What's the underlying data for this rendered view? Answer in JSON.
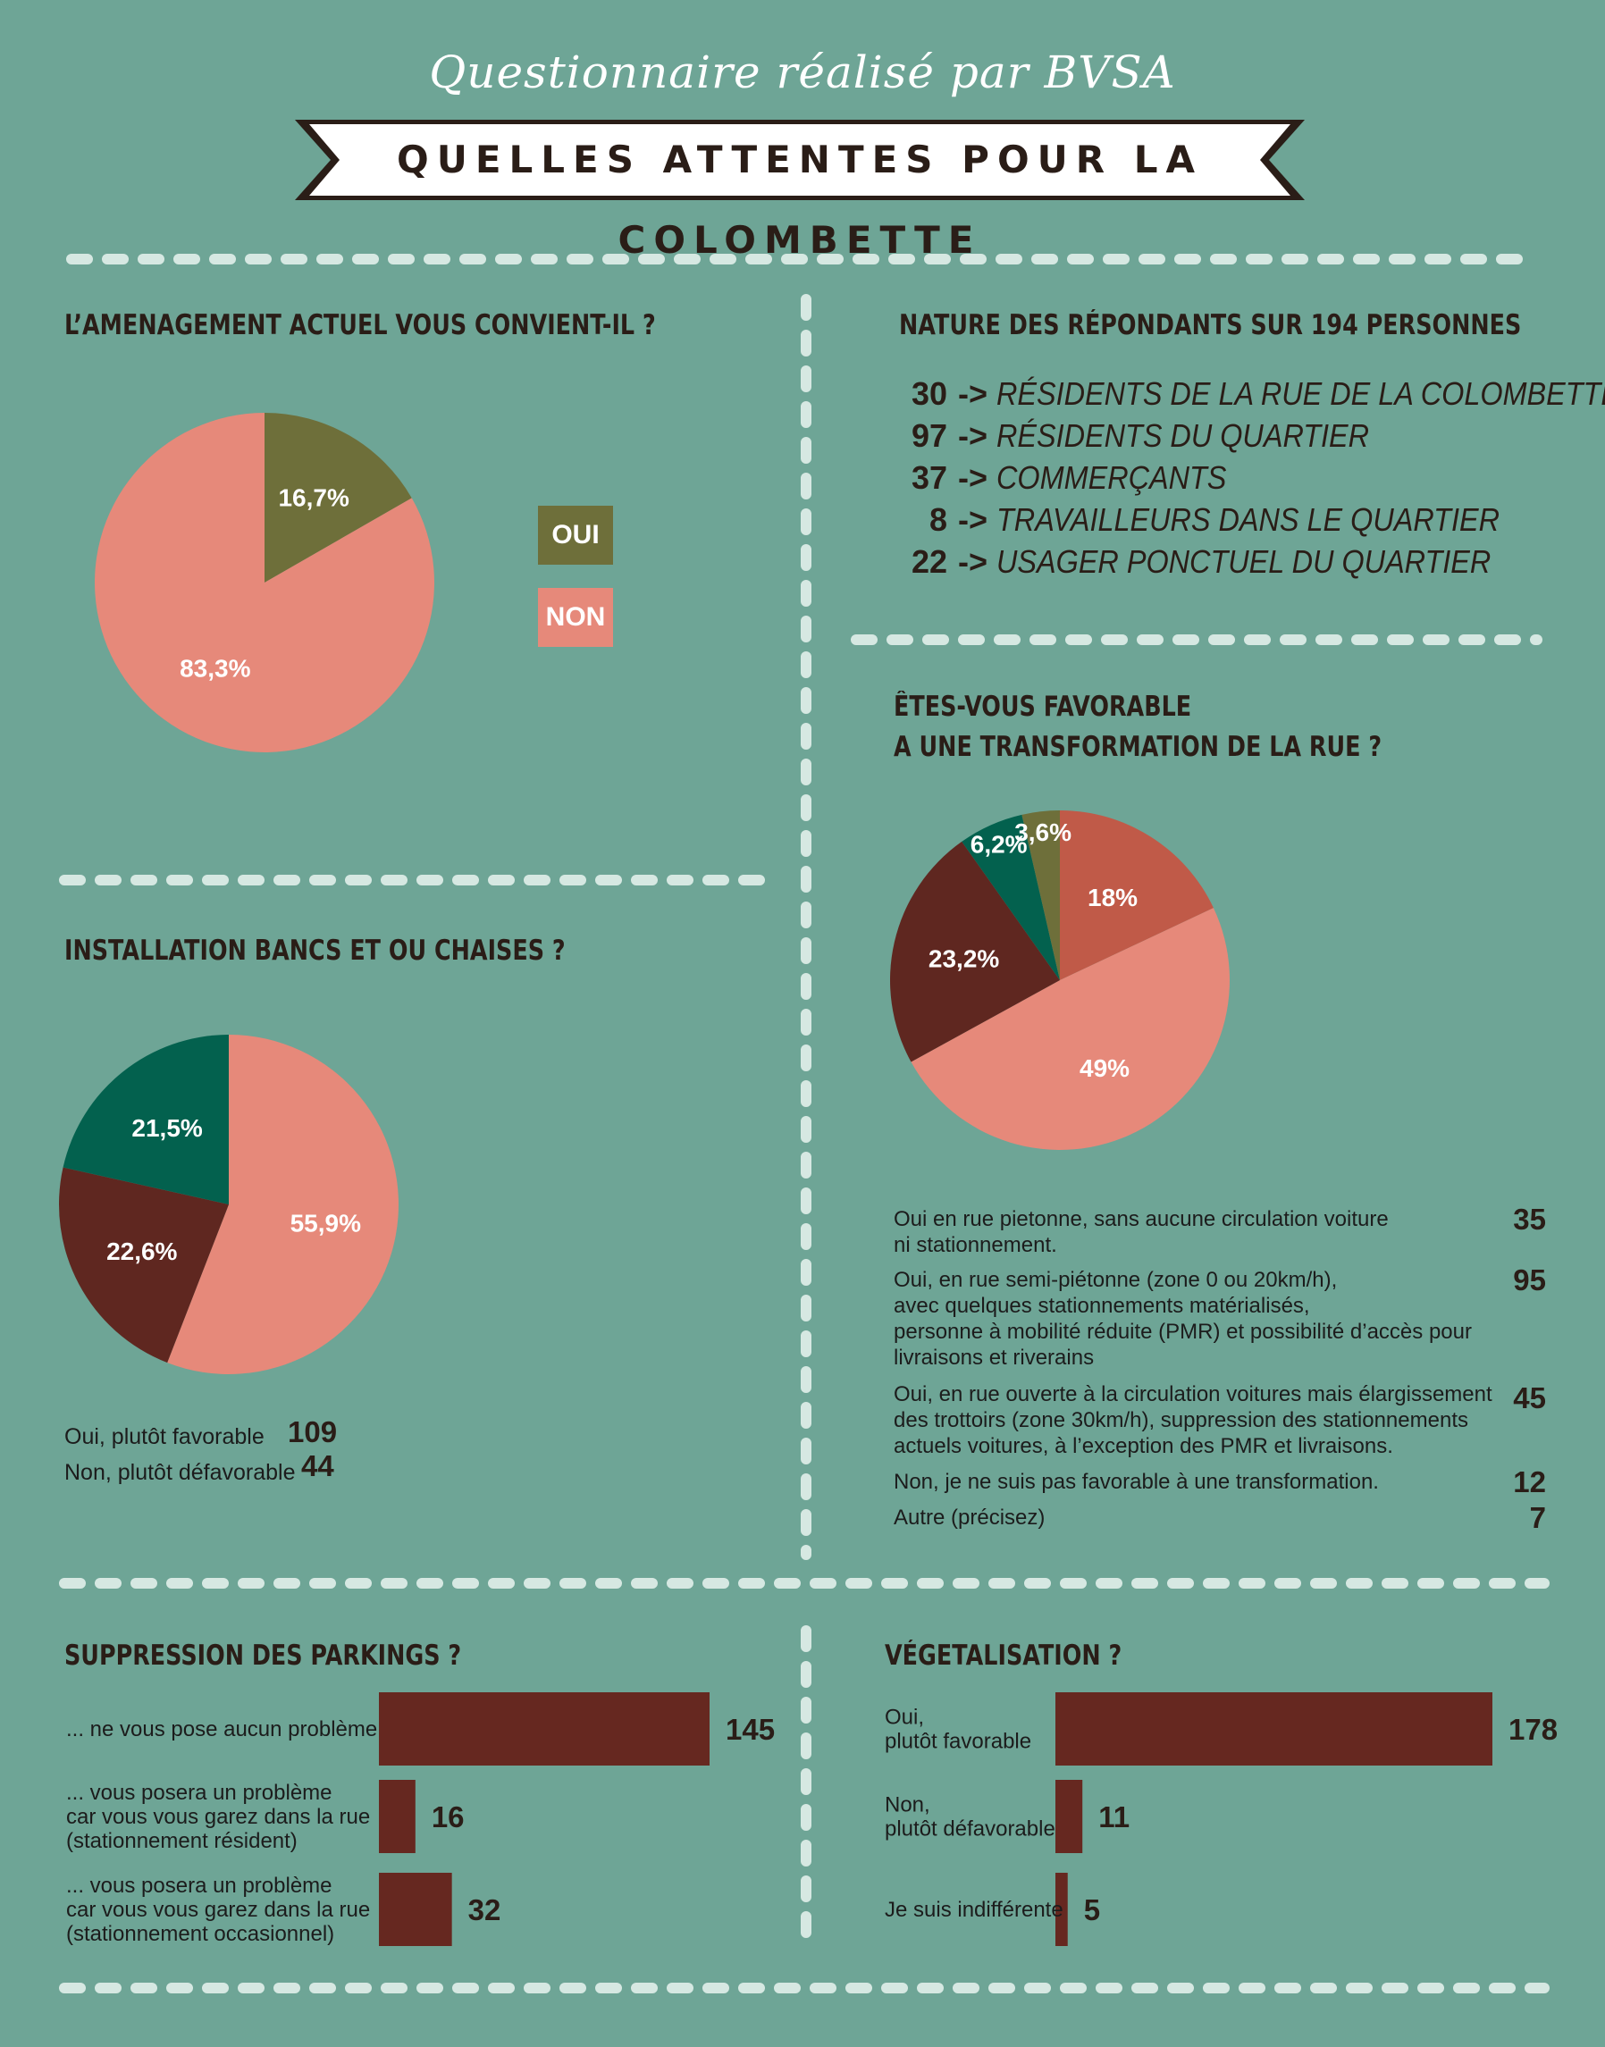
{
  "header": {
    "subtitle": "Questionnaire réalisé par BVSA",
    "title": "QUELLES ATTENTES POUR LA COLOMBETTE"
  },
  "colors": {
    "background": "#6ea596",
    "divider": "#d6e8e2",
    "banner_bg": "#ffffff",
    "banner_border": "#2a1d17",
    "olive": "#6e6f3a",
    "salmon": "#e6897a",
    "brick": "#c05a48",
    "maroon": "#5f2720",
    "teal": "#03614e",
    "bar": "#662820"
  },
  "sections": {
    "amenagement": {
      "title": "L’AMENAGEMENT ACTUEL VOUS CONVIENT-IL ?",
      "legend": [
        {
          "label": "OUI",
          "color": "#6e6f3a"
        },
        {
          "label": "NON",
          "color": "#e6897a"
        }
      ]
    },
    "repondants": {
      "title": "NATURE DES RÉPONDANTS SUR 194 PERSONNES",
      "items": [
        {
          "count": "30",
          "arrow": "->",
          "label": "RÉSIDENTS DE LA RUE DE LA COLOMBETTE"
        },
        {
          "count": "97",
          "arrow": "->",
          "label": "RÉSIDENTS DU QUARTIER"
        },
        {
          "count": "37",
          "arrow": "->",
          "label": "COMMERÇANTS"
        },
        {
          "count": "8",
          "arrow": "->",
          "label": "TRAVAILLEURS DANS LE QUARTIER"
        },
        {
          "count": "22",
          "arrow": "->",
          "label": "USAGER PONCTUEL DU QUARTIER"
        }
      ]
    },
    "bancs": {
      "title": "INSTALLATION BANCS ET OU CHAISES ?",
      "counts": [
        {
          "label": "Oui, plutôt favorable",
          "value": "109"
        },
        {
          "label": "Non, plutôt défavorable",
          "value": "44"
        }
      ]
    },
    "transformation": {
      "title_line1": "ÊTES-VOUS FAVORABLE",
      "title_line2": "A UNE TRANSFORMATION DE LA RUE ?",
      "answers": [
        {
          "lines": [
            "Oui en rue pietonne, sans aucune circulation voiture",
            "ni stationnement."
          ],
          "value": "35"
        },
        {
          "lines": [
            "Oui, en rue semi-piétonne (zone 0 ou 20km/h),",
            "avec quelques stationnements matérialisés,",
            "personne à mobilité réduite (PMR) et possibilité d’accès pour",
            "livraisons et riverains"
          ],
          "value": "95"
        },
        {
          "lines": [
            "Oui, en rue ouverte à la circulation voitures mais élargissement",
            "des trottoirs (zone 30km/h), suppression des stationnements",
            "actuels voitures, à l’exception des PMR et livraisons."
          ],
          "value": "45"
        },
        {
          "lines": [
            "Non, je ne suis pas favorable à une transformation."
          ],
          "value": "12"
        },
        {
          "lines": [
            "Autre (précisez)"
          ],
          "value": "7"
        }
      ]
    },
    "parkings": {
      "title": "SUPPRESSION DES PARKINGS ?"
    },
    "vegetalisation": {
      "title": "VÉGETALISATION ?"
    }
  },
  "chart_data": [
    {
      "id": "amenagement",
      "type": "pie",
      "categories": [
        "OUI",
        "NON"
      ],
      "values": [
        16.7,
        83.3
      ],
      "labels": [
        "16,7%",
        "83,3%"
      ],
      "colors": [
        "#6e6f3a",
        "#e6897a"
      ],
      "start_angle_deg": 0
    },
    {
      "id": "bancs",
      "type": "pie",
      "values": [
        55.9,
        22.6,
        21.5
      ],
      "labels": [
        "55,9%",
        "22,6%",
        "21,5%"
      ],
      "colors": [
        "#e6897a",
        "#5f2720",
        "#03614e"
      ],
      "start_angle_deg": 0
    },
    {
      "id": "transformation",
      "type": "pie",
      "values": [
        18,
        49,
        23.2,
        6.2,
        3.6
      ],
      "labels": [
        "18%",
        "49%",
        "23,2%",
        "6,2%",
        "3,6%"
      ],
      "colors": [
        "#c05a48",
        "#e6897a",
        "#5f2720",
        "#03614e",
        "#6e6f3a"
      ],
      "start_angle_deg": 0
    },
    {
      "id": "parkings",
      "type": "bar",
      "orientation": "horizontal",
      "categories": [
        [
          "... ne vous pose aucun problème"
        ],
        [
          "... vous posera un problème",
          "car vous vous garez dans la rue",
          "(stationnement résident)"
        ],
        [
          "... vous posera un problème",
          "car vous vous garez dans la rue",
          "(stationnement occasionnel)"
        ]
      ],
      "values": [
        145,
        16,
        32
      ],
      "color": "#662820"
    },
    {
      "id": "vegetalisation",
      "type": "bar",
      "orientation": "horizontal",
      "categories": [
        [
          "Oui,",
          "plutôt favorable"
        ],
        [
          "Non,",
          "plutôt défavorable"
        ],
        [
          "Je suis indifférente"
        ]
      ],
      "values": [
        178,
        11,
        5
      ],
      "color": "#662820"
    }
  ]
}
